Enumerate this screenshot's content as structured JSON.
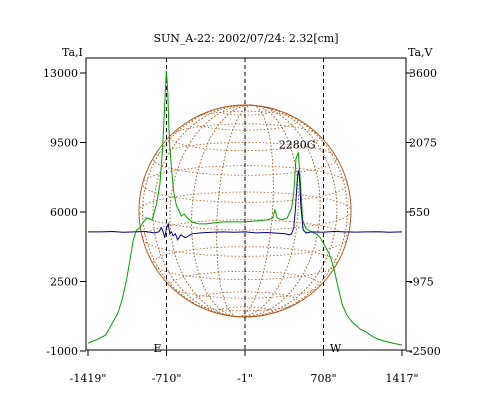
{
  "chart_data": {
    "type": "line",
    "title": "SUN_A-22: 2002/07/24: 2.32[cm]",
    "left_axis_label": "Ta,I",
    "right_axis_label": "Ta,V",
    "x_ticks": [
      "-1419\"",
      "-710\"",
      "-1\"",
      "708\"",
      "1417\""
    ],
    "x_tick_values": [
      -1419,
      -710,
      -1,
      708,
      1417
    ],
    "xlim": [
      -1419,
      1417
    ],
    "left_ticks": [
      13000,
      9500,
      6000,
      2500,
      -1000
    ],
    "left_ylim": [
      -1000,
      13000
    ],
    "right_ticks": [
      3600,
      2075,
      550,
      -975,
      -2500
    ],
    "right_ylim": [
      -2500,
      3600
    ],
    "annotation": {
      "text": "2280G",
      "x": 470,
      "y": 9000
    },
    "limb_labels": {
      "east": "E",
      "west": "W"
    },
    "limb_lines_x": [
      -710,
      708
    ],
    "center_line_x": -1,
    "series": [
      {
        "axis": "left",
        "color": "#00a000",
        "x": [
          -1419,
          -1330,
          -1260,
          -1200,
          -1150,
          -1110,
          -1070,
          -1040,
          -1010,
          -980,
          -950,
          -920,
          -880,
          -840,
          -800,
          -770,
          -745,
          -725,
          -712,
          -705,
          -698,
          -690,
          -680,
          -665,
          -645,
          -620,
          -600,
          -575,
          -550,
          -520,
          -480,
          -420,
          -350,
          -280,
          -200,
          -100,
          0,
          100,
          200,
          250,
          270,
          290,
          330,
          380,
          420,
          440,
          460,
          480,
          500,
          520,
          545,
          570,
          600,
          640,
          680,
          720,
          760,
          800,
          840,
          880,
          920,
          960,
          1000,
          1040,
          1080,
          1120,
          1160,
          1200,
          1260,
          1330,
          1417
        ],
        "values": [
          -600,
          -400,
          -200,
          400,
          900,
          1600,
          2600,
          3600,
          4600,
          5100,
          5200,
          5500,
          5700,
          5600,
          6400,
          7400,
          9200,
          11500,
          13100,
          12600,
          12000,
          10500,
          9300,
          8200,
          7000,
          6300,
          6100,
          5800,
          5900,
          5700,
          5500,
          5400,
          5400,
          5450,
          5500,
          5500,
          5500,
          5550,
          5600,
          5700,
          6100,
          5700,
          5600,
          5700,
          6200,
          7000,
          8700,
          9000,
          7400,
          5600,
          5200,
          5100,
          5000,
          4900,
          4700,
          4300,
          3900,
          3200,
          2200,
          1300,
          800,
          500,
          300,
          100,
          0,
          -150,
          -300,
          -400,
          -500,
          -600,
          -700
        ]
      },
      {
        "axis": "left",
        "color": "#000080",
        "x": [
          -1419,
          -1300,
          -1200,
          -1100,
          -1000,
          -900,
          -820,
          -780,
          -755,
          -740,
          -725,
          -710,
          -695,
          -680,
          -665,
          -650,
          -630,
          -610,
          -580,
          -540,
          -480,
          -400,
          -300,
          -200,
          -100,
          0,
          100,
          200,
          300,
          360,
          400,
          420,
          440,
          455,
          470,
          480,
          490,
          505,
          525,
          550,
          600,
          700,
          800,
          900,
          1000,
          1100,
          1200,
          1300,
          1417
        ],
        "values": [
          5000,
          5000,
          5020,
          4980,
          5000,
          5020,
          4950,
          5000,
          5200,
          5000,
          4700,
          5200,
          5400,
          4900,
          5000,
          4800,
          4900,
          4600,
          4850,
          4700,
          4900,
          4950,
          4980,
          5000,
          4980,
          5000,
          4950,
          4970,
          4930,
          4900,
          4850,
          4900,
          5200,
          6200,
          7500,
          8100,
          7800,
          6200,
          5100,
          4950,
          5000,
          4980,
          5020,
          5000,
          4990,
          5000,
          5010,
          4980,
          5000
        ]
      }
    ]
  }
}
